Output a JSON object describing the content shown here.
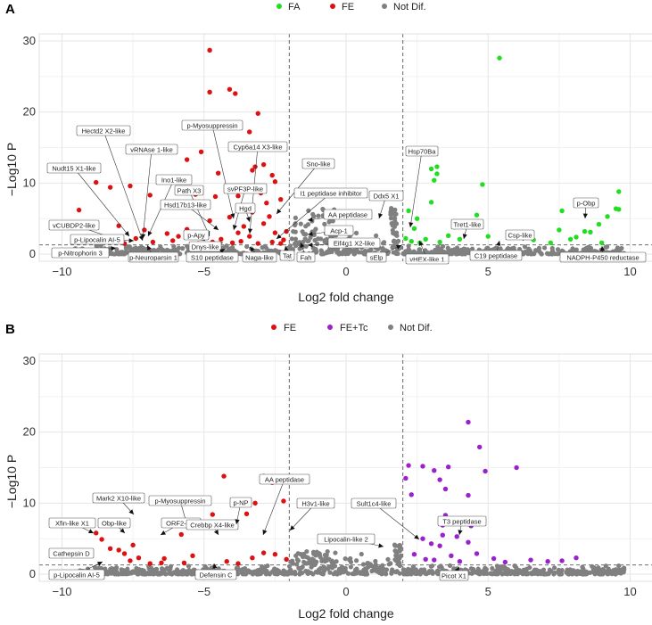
{
  "chart_data": [
    {
      "type": "scatter",
      "panel": "A",
      "title": "",
      "xlabel": "Log2 fold change",
      "ylabel": "−Log10 P",
      "xlim": [
        -10.8,
        10.8
      ],
      "ylim": [
        -1,
        31
      ],
      "xticks": [
        -10,
        -5,
        0,
        5,
        10
      ],
      "yticks": [
        0,
        10,
        20,
        30
      ],
      "vlines": [
        -2,
        2
      ],
      "hline": 1.3,
      "legend": [
        {
          "name": "FA",
          "color": "#22dd22"
        },
        {
          "name": "FE",
          "color": "#dd1111"
        },
        {
          "name": "Not Dif.",
          "color": "#808080"
        }
      ],
      "series": [
        {
          "name": "FE",
          "color": "#dd1111",
          "points": [
            [
              -4.8,
              28.7
            ],
            [
              -4.8,
              22.8
            ],
            [
              -4.1,
              23.2
            ],
            [
              -3.9,
              22.6
            ],
            [
              -3.1,
              19.8
            ],
            [
              -3.4,
              17.2
            ],
            [
              -5.6,
              13.3
            ],
            [
              -5.1,
              14.4
            ],
            [
              -4.5,
              11.4
            ],
            [
              -3.3,
              11.8
            ],
            [
              -3.2,
              12.3
            ],
            [
              -2.9,
              12.6
            ],
            [
              -2.6,
              11.1
            ],
            [
              -2.5,
              10.2
            ],
            [
              -7.6,
              9.6
            ],
            [
              -6.9,
              8.3
            ],
            [
              -8.3,
              9.4
            ],
            [
              -8.8,
              10.1
            ],
            [
              -5.3,
              8.4
            ],
            [
              -4.6,
              8.1
            ],
            [
              -4.2,
              9.0
            ],
            [
              -3.8,
              8.2
            ],
            [
              -3.0,
              8.6
            ],
            [
              -2.8,
              7.2
            ],
            [
              -2.3,
              7.7
            ],
            [
              -3.3,
              5.9
            ],
            [
              -4.1,
              5.2
            ],
            [
              -2.7,
              5.3
            ],
            [
              -2.9,
              4.3
            ],
            [
              -3.6,
              3.9
            ],
            [
              -4.8,
              4.7
            ],
            [
              -5.6,
              3.5
            ],
            [
              -8.9,
              4.4
            ],
            [
              -8.0,
              4.0
            ],
            [
              -7.1,
              3.4
            ],
            [
              -6.3,
              2.9
            ],
            [
              -5.9,
              2.5
            ],
            [
              -5.3,
              2.7
            ],
            [
              -4.4,
              2.1
            ],
            [
              -3.8,
              3.0
            ],
            [
              -3.4,
              2.5
            ],
            [
              -2.5,
              3.0
            ],
            [
              -2.2,
              2.0
            ],
            [
              -2.1,
              3.2
            ],
            [
              -9.4,
              6.2
            ],
            [
              -8.6,
              2.0
            ],
            [
              -7.8,
              1.5
            ],
            [
              -7.4,
              2.2
            ],
            [
              -6.8,
              1.7
            ],
            [
              -6.1,
              1.9
            ],
            [
              -5.2,
              1.5
            ],
            [
              -4.7,
              1.7
            ],
            [
              -4.0,
              1.6
            ],
            [
              -3.7,
              1.8
            ],
            [
              -3.1,
              1.5
            ],
            [
              -2.6,
              1.7
            ],
            [
              -2.3,
              1.5
            ]
          ]
        },
        {
          "name": "FA",
          "color": "#22dd22",
          "points": [
            [
              5.4,
              27.6
            ],
            [
              3.2,
              12.3
            ],
            [
              3.2,
              11.3
            ],
            [
              3.0,
              12.0
            ],
            [
              3.1,
              10.4
            ],
            [
              4.8,
              9.8
            ],
            [
              3.0,
              7.3
            ],
            [
              4.6,
              5.5
            ],
            [
              2.2,
              6.1
            ],
            [
              2.5,
              5.0
            ],
            [
              2.4,
              3.6
            ],
            [
              2.8,
              2.1
            ],
            [
              3.8,
              3.8
            ],
            [
              3.6,
              2.6
            ],
            [
              4.0,
              2.1
            ],
            [
              5.0,
              2.5
            ],
            [
              6.3,
              2.6
            ],
            [
              6.6,
              2.0
            ],
            [
              7.5,
              3.4
            ],
            [
              7.6,
              6.1
            ],
            [
              7.9,
              2.1
            ],
            [
              8.1,
              2.4
            ],
            [
              8.4,
              3.2
            ],
            [
              8.6,
              3.1
            ],
            [
              8.9,
              4.2
            ],
            [
              9.2,
              5.3
            ],
            [
              9.5,
              6.4
            ],
            [
              9.6,
              6.3
            ],
            [
              9.6,
              8.8
            ],
            [
              2.1,
              2.2
            ],
            [
              2.3,
              1.8
            ],
            [
              2.6,
              1.6
            ],
            [
              3.3,
              1.7
            ],
            [
              7.2,
              1.6
            ],
            [
              9.0,
              1.6
            ]
          ]
        }
      ],
      "labels": [
        {
          "text": "Hectd2 X2-like"
        },
        {
          "text": "vRNAse 1-like"
        },
        {
          "text": "Nudt15 X1-like"
        },
        {
          "text": "Ino1-like"
        },
        {
          "text": "Path X3"
        },
        {
          "text": "Hsd17b13-like"
        },
        {
          "text": "p-Myosuppressin"
        },
        {
          "text": "Cyp6a14 X3-like"
        },
        {
          "text": "svPF3P-like"
        },
        {
          "text": "Hgd"
        },
        {
          "text": "Sno-like"
        },
        {
          "text": "I1 peptidase inhibitor"
        },
        {
          "text": "Ddx5 X1"
        },
        {
          "text": "AA peptidase"
        },
        {
          "text": "Acp-1"
        },
        {
          "text": "Eif4g1 X2-like"
        },
        {
          "text": "vCUBDP2-like"
        },
        {
          "text": "p-Lipocalin AI-5"
        },
        {
          "text": "p-Apy"
        },
        {
          "text": "Dnys-like"
        },
        {
          "text": "p-Nitrophorin 3"
        },
        {
          "text": "p-Neuroparsin 1"
        },
        {
          "text": "S10 peptidase"
        },
        {
          "text": "Naga-like"
        },
        {
          "text": "Tat"
        },
        {
          "text": "Fah"
        },
        {
          "text": "sElp"
        },
        {
          "text": "Hsp70Ba"
        },
        {
          "text": "Tret1-like"
        },
        {
          "text": "Csp-like"
        },
        {
          "text": "p-Obp"
        },
        {
          "text": "vHEX-like 1"
        },
        {
          "text": "C19 peptidase"
        },
        {
          "text": "NADPH-P450 reductase"
        }
      ]
    },
    {
      "type": "scatter",
      "panel": "B",
      "title": "",
      "xlabel": "Log2 fold change",
      "ylabel": "−Log10 P",
      "xlim": [
        -10.8,
        10.8
      ],
      "ylim": [
        -1,
        31
      ],
      "xticks": [
        -10,
        -5,
        0,
        5,
        10
      ],
      "yticks": [
        0,
        10,
        20,
        30
      ],
      "vlines": [
        -2,
        2
      ],
      "hline": 1.3,
      "legend": [
        {
          "name": "FE",
          "color": "#dd1111"
        },
        {
          "name": "FE+Tc",
          "color": "#9922cc"
        },
        {
          "name": "Not Dif.",
          "color": "#808080"
        }
      ],
      "series": [
        {
          "name": "FE",
          "color": "#dd1111",
          "points": [
            [
              -4.3,
              13.8
            ],
            [
              -2.9,
              13.8
            ],
            [
              -2.6,
              12.9
            ],
            [
              -3.2,
              10.0
            ],
            [
              -2.2,
              10.3
            ],
            [
              -3.5,
              8.5
            ],
            [
              -4.7,
              8.4
            ],
            [
              -5.8,
              5.6
            ],
            [
              -8.8,
              5.8
            ],
            [
              -8.6,
              4.9
            ],
            [
              -7.5,
              4.1
            ],
            [
              -8.3,
              3.6
            ],
            [
              -8.0,
              3.4
            ],
            [
              -7.8,
              2.9
            ],
            [
              -7.3,
              2.3
            ],
            [
              -6.9,
              1.5
            ],
            [
              -6.4,
              2.2
            ],
            [
              -5.4,
              2.6
            ],
            [
              -4.2,
              1.8
            ],
            [
              -2.9,
              3.0
            ],
            [
              -2.5,
              2.8
            ],
            [
              -2.1,
              2.1
            ],
            [
              -3.3,
              2.3
            ],
            [
              -5.7,
              1.6
            ],
            [
              -7.6,
              1.9
            ],
            [
              -6.5,
              1.6
            ],
            [
              -3.8,
              1.5
            ]
          ]
        },
        {
          "name": "FE+Tc",
          "color": "#9922cc",
          "points": [
            [
              4.3,
              21.4
            ],
            [
              4.7,
              17.9
            ],
            [
              2.2,
              15.3
            ],
            [
              2.7,
              15.2
            ],
            [
              3.1,
              14.6
            ],
            [
              3.6,
              15.1
            ],
            [
              4.9,
              14.5
            ],
            [
              6.0,
              15.0
            ],
            [
              2.1,
              13.5
            ],
            [
              3.3,
              13.3
            ],
            [
              3.5,
              12.0
            ],
            [
              2.3,
              11.2
            ],
            [
              4.3,
              11.1
            ],
            [
              3.5,
              8.3
            ],
            [
              3.4,
              6.9
            ],
            [
              4.4,
              6.8
            ],
            [
              3.4,
              5.5
            ],
            [
              2.7,
              5.0
            ],
            [
              3.0,
              4.3
            ],
            [
              3.3,
              4.0
            ],
            [
              3.9,
              5.3
            ],
            [
              4.3,
              4.5
            ],
            [
              3.7,
              2.6
            ],
            [
              4.6,
              2.9
            ],
            [
              5.2,
              2.2
            ],
            [
              6.5,
              2.0
            ],
            [
              7.1,
              1.8
            ],
            [
              7.6,
              1.9
            ],
            [
              8.1,
              2.3
            ],
            [
              2.4,
              2.8
            ],
            [
              2.8,
              2.1
            ],
            [
              3.1,
              2.0
            ],
            [
              4.0,
              1.8
            ],
            [
              5.6,
              1.7
            ]
          ]
        }
      ],
      "labels": [
        {
          "text": "Xfin-like X1"
        },
        {
          "text": "Obp-like"
        },
        {
          "text": "Mark2 X10-like"
        },
        {
          "text": "p-Myosuppressin"
        },
        {
          "text": "ORF2-like"
        },
        {
          "text": "Crebbp X4-like"
        },
        {
          "text": "p-NP"
        },
        {
          "text": "AA peptidase"
        },
        {
          "text": "H3v1-like"
        },
        {
          "text": "Cathepsin D"
        },
        {
          "text": "p-Lipocalin AI-5"
        },
        {
          "text": "Defensin C"
        },
        {
          "text": "Sult1c4-like"
        },
        {
          "text": "Lipocalin-like 2"
        },
        {
          "text": "T3 peptidase"
        },
        {
          "text": "Picot X1"
        }
      ]
    }
  ]
}
